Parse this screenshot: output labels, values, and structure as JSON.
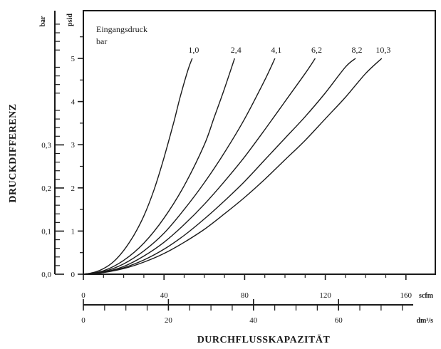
{
  "chart_data": {
    "type": "line",
    "xlabel": "DURCHFLUSSKAPAZITÄT",
    "ylabel": "DRUCKDIFFERENZ",
    "legend_title": "Eingangsdruck",
    "legend_unit": "bar",
    "x_units": {
      "primary": "scfm",
      "secondary": "dm³/s"
    },
    "y_units": {
      "primary": "psid",
      "secondary": "bar"
    },
    "xlim": [
      0,
      175
    ],
    "ylim": [
      0,
      6
    ],
    "x_ticks": [
      "0",
      "40",
      "80",
      "120",
      "160"
    ],
    "x_ticks_secondary": [
      "0",
      "20",
      "40",
      "60"
    ],
    "y_ticks": [
      "0",
      "1",
      "2",
      "3",
      "4",
      "5"
    ],
    "y_ticks_secondary": [
      "0,0",
      "0,1",
      "0,2",
      "0,3"
    ],
    "series": [
      {
        "name": "1,0",
        "x": [
          0,
          5,
          10,
          15,
          20,
          25,
          30,
          35,
          40,
          45,
          48,
          52,
          54
        ],
        "y": [
          0,
          0.04,
          0.13,
          0.29,
          0.55,
          0.9,
          1.35,
          1.95,
          2.7,
          3.55,
          4.1,
          4.75,
          5.0
        ]
      },
      {
        "name": "2,4",
        "x": [
          0,
          10,
          20,
          30,
          40,
          50,
          60,
          65,
          70,
          75
        ],
        "y": [
          0,
          0.08,
          0.32,
          0.72,
          1.3,
          2.05,
          3.0,
          3.65,
          4.3,
          5.0
        ]
      },
      {
        "name": "4,1",
        "x": [
          0,
          10,
          20,
          30,
          40,
          50,
          60,
          70,
          80,
          90,
          95
        ],
        "y": [
          0,
          0.06,
          0.24,
          0.54,
          0.95,
          1.5,
          2.12,
          2.82,
          3.6,
          4.5,
          5.0
        ]
      },
      {
        "name": "6,2",
        "x": [
          0,
          10,
          20,
          30,
          40,
          50,
          60,
          70,
          80,
          90,
          100,
          110,
          115
        ],
        "y": [
          0,
          0.05,
          0.18,
          0.42,
          0.74,
          1.15,
          1.62,
          2.15,
          2.72,
          3.35,
          4.0,
          4.65,
          5.0
        ]
      },
      {
        "name": "8,2",
        "x": [
          0,
          10,
          20,
          30,
          40,
          50,
          60,
          70,
          80,
          90,
          100,
          110,
          120,
          130,
          135
        ],
        "y": [
          0,
          0.04,
          0.15,
          0.33,
          0.58,
          0.9,
          1.28,
          1.7,
          2.15,
          2.65,
          3.15,
          3.65,
          4.2,
          4.8,
          5.0
        ]
      },
      {
        "name": "10,3",
        "x": [
          0,
          10,
          20,
          30,
          40,
          50,
          60,
          70,
          80,
          90,
          100,
          110,
          120,
          130,
          140,
          148
        ],
        "y": [
          0,
          0.04,
          0.13,
          0.28,
          0.48,
          0.74,
          1.04,
          1.4,
          1.78,
          2.2,
          2.65,
          3.1,
          3.6,
          4.1,
          4.65,
          5.0
        ]
      }
    ]
  }
}
